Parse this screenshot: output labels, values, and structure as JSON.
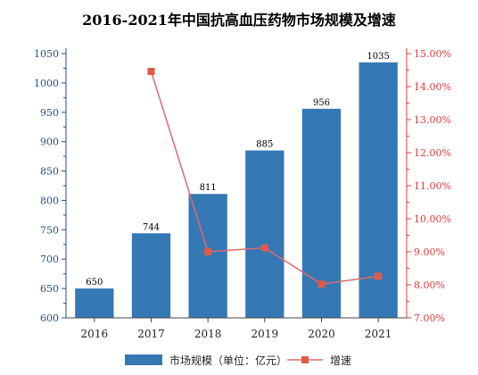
{
  "chart_data": {
    "type": "bar+line",
    "title": "2016-2021年中国抗高血压药物市场规模及增速",
    "categories": [
      "2016",
      "2017",
      "2018",
      "2019",
      "2020",
      "2021"
    ],
    "series": [
      {
        "name": "市场规模（单位：亿元）",
        "type": "bar",
        "axis": "left",
        "values": [
          650,
          744,
          811,
          885,
          956,
          1035
        ],
        "labels": [
          "650",
          "744",
          "811",
          "885",
          "956",
          "1035"
        ]
      },
      {
        "name": "增速",
        "type": "line",
        "axis": "right",
        "values": [
          null,
          14.46,
          9.0,
          9.12,
          8.02,
          8.26
        ]
      }
    ],
    "y_left": {
      "ylim": [
        600,
        1050
      ],
      "ticks": [
        "600",
        "650",
        "700",
        "750",
        "800",
        "850",
        "900",
        "950",
        "1000",
        "1050"
      ]
    },
    "y_right": {
      "ylim": [
        7.0,
        15.0
      ],
      "ticks": [
        "7.00%",
        "8.00%",
        "9.00%",
        "10.00%",
        "11.00%",
        "12.00%",
        "13.00%",
        "14.00%",
        "15.00%"
      ]
    },
    "legend_position": "bottom",
    "colors": {
      "bar": "#3478b4",
      "line": "#e06a6a",
      "marker": "#e05a4a",
      "left_axis": "#1f4f8a",
      "right_axis": "#e23a3a"
    }
  }
}
